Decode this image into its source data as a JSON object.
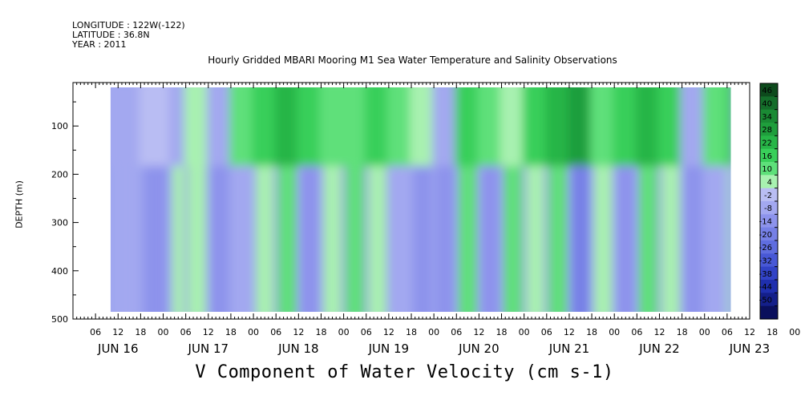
{
  "meta": {
    "longitude": "LONGITUDE : 122W(-122)",
    "latitude": "LATITUDE : 36.8N",
    "year": "YEAR : 2011"
  },
  "chart_data": {
    "type": "heatmap",
    "title": "Hourly Gridded MBARI Mooring M1 Sea Water Temperature and Salinity Observations",
    "xlabel": "V Component of Water Velocity (cm s-1)",
    "ylabel": "DEPTH (m)",
    "y_ticks": [
      100,
      200,
      300,
      400,
      500
    ],
    "ylim": [
      500,
      10
    ],
    "data_depth_range": [
      20,
      485
    ],
    "x_hour_ticks": [
      "06",
      "12",
      "18",
      "00",
      "06",
      "12",
      "18",
      "00",
      "06",
      "12",
      "18",
      "00",
      "06",
      "12",
      "18",
      "00",
      "06",
      "12",
      "18",
      "00",
      "06",
      "12",
      "18",
      "00",
      "06",
      "12",
      "18",
      "00",
      "06",
      "12",
      "18",
      "00"
    ],
    "x_day_labels": [
      "JUN 16",
      "JUN 17",
      "JUN 18",
      "JUN 19",
      "JUN 20",
      "JUN 21",
      "JUN 22",
      "JUN 23"
    ],
    "x_start": "2011-06-16 00:00",
    "x_end": "2011-06-23 12:00",
    "data_time_range": [
      "2011-06-16 10:00",
      "2011-06-23 07:00"
    ],
    "colorbar_levels": [
      "46",
      "40",
      "34",
      "28",
      "22",
      "16",
      "10",
      "4",
      "-2",
      "-8",
      "-14",
      "-20",
      "-26",
      "-32",
      "-38",
      "-44",
      "-50"
    ],
    "colorbar_colors": [
      "#0d4a1c",
      "#146d2a",
      "#1a8a34",
      "#1f9e3c",
      "#27b547",
      "#39cf5a",
      "#5ee07a",
      "#a8f1b0",
      "#b9bdf3",
      "#a3a8f0",
      "#8d93ec",
      "#7680e6",
      "#5f6ddf",
      "#4858d6",
      "#3243c6",
      "#1f2fae",
      "#141f8a",
      "#0a0f5c"
    ],
    "field_low_color": "#9ea6ef",
    "field_high_color": "#4fe06f",
    "columns": [
      {
        "time": "06-16 10:00",
        "surface": -6,
        "deep": -8
      },
      {
        "time": "06-16 18:00",
        "surface": -2,
        "deep": -10
      },
      {
        "time": "06-17 02:00",
        "surface": -4,
        "deep": 4
      },
      {
        "time": "06-17 06:00",
        "surface": 4,
        "deep": 6
      },
      {
        "time": "06-17 12:00",
        "surface": -6,
        "deep": -14
      },
      {
        "time": "06-17 18:00",
        "surface": 10,
        "deep": -8
      },
      {
        "time": "06-18 00:00",
        "surface": 16,
        "deep": 8
      },
      {
        "time": "06-18 06:00",
        "surface": 22,
        "deep": 10
      },
      {
        "time": "06-18 12:00",
        "surface": 16,
        "deep": -10
      },
      {
        "time": "06-18 18:00",
        "surface": 10,
        "deep": 8
      },
      {
        "time": "06-19 00:00",
        "surface": 14,
        "deep": 10
      },
      {
        "time": "06-19 06:00",
        "surface": 16,
        "deep": 8
      },
      {
        "time": "06-19 12:00",
        "surface": 10,
        "deep": -4
      },
      {
        "time": "06-19 18:00",
        "surface": 4,
        "deep": -10
      },
      {
        "time": "06-20 00:00",
        "surface": -6,
        "deep": -12
      },
      {
        "time": "06-20 06:00",
        "surface": 16,
        "deep": 10
      },
      {
        "time": "06-20 12:00",
        "surface": 10,
        "deep": -14
      },
      {
        "time": "06-20 18:00",
        "surface": 4,
        "deep": 10
      },
      {
        "time": "06-21 00:00",
        "surface": 16,
        "deep": 8
      },
      {
        "time": "06-21 06:00",
        "surface": 22,
        "deep": 10
      },
      {
        "time": "06-21 12:00",
        "surface": 28,
        "deep": -16
      },
      {
        "time": "06-21 18:00",
        "surface": 10,
        "deep": 8
      },
      {
        "time": "06-22 00:00",
        "surface": 16,
        "deep": -10
      },
      {
        "time": "06-22 06:00",
        "surface": 22,
        "deep": 10
      },
      {
        "time": "06-22 12:00",
        "surface": 16,
        "deep": 8
      },
      {
        "time": "06-22 18:00",
        "surface": -4,
        "deep": -10
      },
      {
        "time": "06-23 00:00",
        "surface": 10,
        "deep": -8
      },
      {
        "time": "06-23 06:00",
        "surface": 16,
        "deep": 6
      }
    ]
  }
}
